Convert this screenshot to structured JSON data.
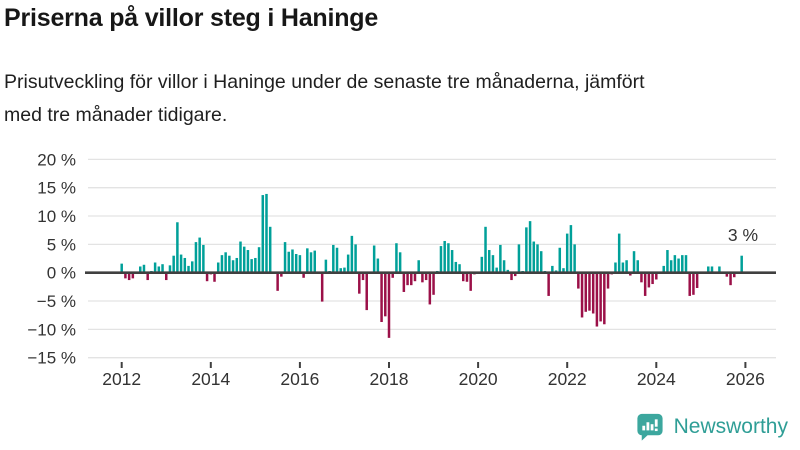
{
  "header": {
    "title": "Priserna på villor steg i Haninge",
    "subtitle": "Prisutveckling för villor i Haninge under de senaste tre månaderna, jämfört med tre månader tidigare."
  },
  "chart_data": {
    "type": "bar",
    "title": "Priserna på villor steg i Haninge",
    "xlabel": "",
    "ylabel": "",
    "unit": "%",
    "x_start": "2012-01",
    "x_interval": "month",
    "x_end": "2025-12",
    "values": [
      1.6,
      -1.0,
      -1.3,
      -1.0,
      0.1,
      1.1,
      1.4,
      -1.3,
      0.3,
      1.8,
      1.1,
      1.5,
      -1.3,
      1.3,
      3.0,
      8.9,
      3.2,
      2.6,
      1.2,
      2.0,
      5.4,
      6.2,
      4.9,
      -1.5,
      -0.3,
      -1.6,
      1.8,
      3.1,
      3.6,
      3.0,
      2.2,
      2.6,
      5.5,
      4.6,
      4.0,
      2.4,
      2.6,
      4.5,
      13.7,
      13.9,
      8.1,
      0.2,
      -3.2,
      -0.7,
      5.4,
      3.7,
      4.1,
      3.3,
      3.1,
      -0.9,
      4.3,
      3.6,
      3.9,
      0.2,
      -5.1,
      2.3,
      0.3,
      4.9,
      4.4,
      0.8,
      0.9,
      3.2,
      6.5,
      5.0,
      -3.7,
      -1.3,
      -6.6,
      0.2,
      4.8,
      2.5,
      -8.7,
      -7.7,
      -11.5,
      -0.9,
      5.2,
      3.6,
      -3.4,
      -2.2,
      -2.2,
      -1.5,
      2.2,
      -1.7,
      -1.3,
      -5.6,
      -3.9,
      0.3,
      4.7,
      5.6,
      5.2,
      4.0,
      1.9,
      1.5,
      -1.5,
      -1.6,
      -3.2,
      -0.3,
      0.2,
      2.8,
      8.1,
      4.0,
      3.1,
      0.9,
      4.9,
      2.2,
      0.5,
      -1.3,
      -0.6,
      5.0,
      0.3,
      8.0,
      9.1,
      5.5,
      5.0,
      3.8,
      0.3,
      -4.1,
      1.2,
      0.4,
      4.4,
      0.8,
      6.9,
      8.4,
      5.0,
      -2.8,
      -7.9,
      -6.9,
      -6.7,
      -7.2,
      -9.5,
      -8.6,
      -9.1,
      -2.8,
      -0.3,
      1.8,
      6.9,
      1.8,
      2.2,
      -0.5,
      3.8,
      2.2,
      -1.7,
      -4.1,
      -2.6,
      -2.0,
      -1.2,
      0.2,
      1.2,
      4.0,
      2.2,
      3.1,
      2.5,
      3.1,
      3.1,
      -4.1,
      -3.9,
      -2.7,
      0.1,
      0.2,
      1.1,
      1.1,
      0.1,
      1.1,
      0.1,
      -0.7,
      -2.2,
      -0.8,
      0.1,
      3.0
    ],
    "y_ticks": [
      20,
      15,
      10,
      5,
      0,
      -5,
      -10,
      -15
    ],
    "x_ticks": [
      2012,
      2014,
      2016,
      2018,
      2020,
      2022,
      2024,
      2026
    ],
    "ylim": [
      -15,
      20
    ],
    "grid": true,
    "annotation": {
      "text": "3 %",
      "refers_to": "2025-12"
    },
    "colors": {
      "positive": "#00a099",
      "negative": "#9b1048",
      "grid": "#e3e3e3",
      "zero_line": "#404040",
      "tick_text": "#333333"
    }
  },
  "footer": {
    "brand": "Newsworthy",
    "brand_color": "#2f9e96",
    "logo_color": "#3ca79e"
  }
}
